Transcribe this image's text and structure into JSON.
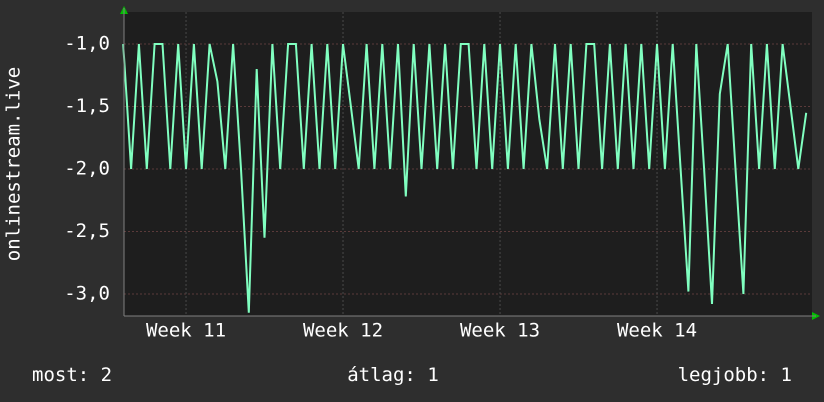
{
  "chart_data": {
    "type": "line",
    "y_label": "onlinestream.live",
    "x": [
      10.6,
      10.65,
      10.7,
      10.75,
      10.8,
      10.85,
      10.9,
      10.95,
      11.0,
      11.05,
      11.1,
      11.15,
      11.2,
      11.25,
      11.3,
      11.35,
      11.4,
      11.45,
      11.5,
      11.55,
      11.6,
      11.65,
      11.7,
      11.75,
      11.8,
      11.85,
      11.9,
      11.95,
      12.0,
      12.05,
      12.1,
      12.15,
      12.2,
      12.25,
      12.3,
      12.35,
      12.4,
      12.45,
      12.5,
      12.55,
      12.6,
      12.65,
      12.7,
      12.75,
      12.8,
      12.85,
      12.9,
      12.95,
      13.0,
      13.05,
      13.1,
      13.15,
      13.2,
      13.25,
      13.3,
      13.35,
      13.4,
      13.45,
      13.5,
      13.55,
      13.6,
      13.65,
      13.7,
      13.75,
      13.8,
      13.85,
      13.9,
      13.95,
      14.0,
      14.05,
      14.1,
      14.15,
      14.2,
      14.25,
      14.3,
      14.35,
      14.4,
      14.45,
      14.5,
      14.55,
      14.6,
      14.65,
      14.7,
      14.75,
      14.8,
      14.85,
      14.9,
      14.95
    ],
    "values": [
      -1,
      -2,
      -1,
      -2,
      -1,
      -1,
      -2,
      -1,
      -2,
      -1,
      -2,
      -1,
      -1.3,
      -2,
      -1,
      -2,
      -3.15,
      -1.2,
      -2.55,
      -1,
      -2,
      -1,
      -1,
      -2,
      -1,
      -2,
      -1,
      -2,
      -1,
      -1.5,
      -2,
      -1,
      -2,
      -1,
      -2,
      -1,
      -2.22,
      -1,
      -2,
      -1,
      -2,
      -1,
      -2,
      -1,
      -1,
      -2,
      -1,
      -2,
      -1,
      -2,
      -1,
      -2,
      -1,
      -1.6,
      -2,
      -1,
      -2,
      -1,
      -2,
      -1,
      -1,
      -2,
      -1,
      -2,
      -1,
      -2,
      -1,
      -2,
      -1,
      -2,
      -1,
      -2,
      -2.98,
      -1,
      -2,
      -3.08,
      -1.4,
      -1,
      -2,
      -3.0,
      -1,
      -2,
      -1,
      -2,
      -1,
      -1.5,
      -2,
      -1.55
    ],
    "color": "#80ffc0",
    "xlim": [
      10.605,
      14.987
    ],
    "ylim": [
      -3.176,
      -0.744
    ],
    "xticks": [
      {
        "value": 11,
        "label": "Week 11"
      },
      {
        "value": 12,
        "label": "Week 12"
      },
      {
        "value": 13,
        "label": "Week 13"
      },
      {
        "value": 14,
        "label": "Week 14"
      }
    ],
    "yticks": [
      {
        "value": -1,
        "label": "-1,0"
      },
      {
        "value": -1.5,
        "label": "-1,5"
      },
      {
        "value": -2,
        "label": "-2,0"
      },
      {
        "value": -2.5,
        "label": "-2,5"
      },
      {
        "value": -3,
        "label": "-3,0"
      }
    ],
    "grid": true,
    "stats": [
      {
        "label": "most:",
        "value": 2
      },
      {
        "label": "átlag:",
        "value": 1
      },
      {
        "label": "legjobb:",
        "value": 1
      }
    ]
  }
}
